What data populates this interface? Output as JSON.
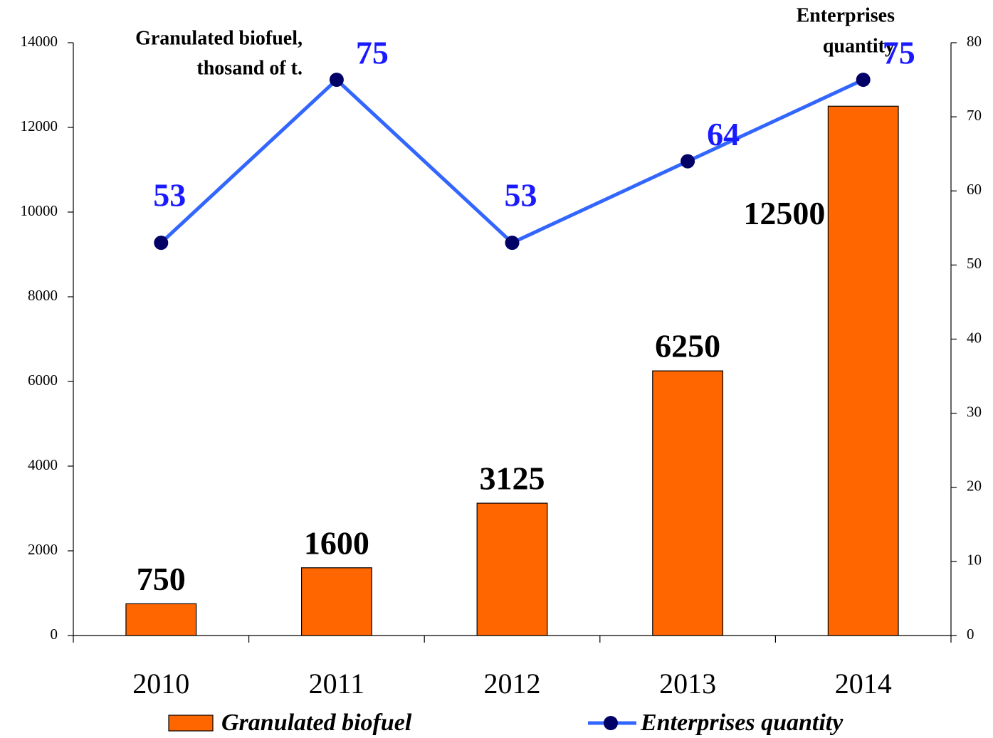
{
  "chart_data": {
    "type": "bar",
    "ylabel": [
      "Granulated biofuel,",
      "thosand of t."
    ],
    "y2label": [
      "Enterprises",
      "quantity"
    ],
    "categories": [
      "2010",
      "2011",
      "2012",
      "2013",
      "2014"
    ],
    "series": [
      {
        "name": "Granulated biofuel",
        "type": "bar",
        "color": "#ff6600",
        "values": [
          750,
          1600,
          3125,
          6250,
          12500
        ]
      },
      {
        "name": "Enterprises quantity",
        "type": "line",
        "axis": "y2",
        "color": "#3366ff",
        "marker_color": "#000066",
        "label_color": "#1a1aff",
        "values": [
          53,
          75,
          53,
          64,
          75
        ]
      }
    ],
    "ylim": [
      0,
      14000
    ],
    "yticks": [
      0,
      2000,
      4000,
      6000,
      8000,
      10000,
      12000,
      14000
    ],
    "y2lim": [
      0,
      80
    ],
    "y2ticks": [
      0,
      10,
      20,
      30,
      40,
      50,
      60,
      70,
      80
    ],
    "grid": false,
    "legend": "bottom"
  }
}
